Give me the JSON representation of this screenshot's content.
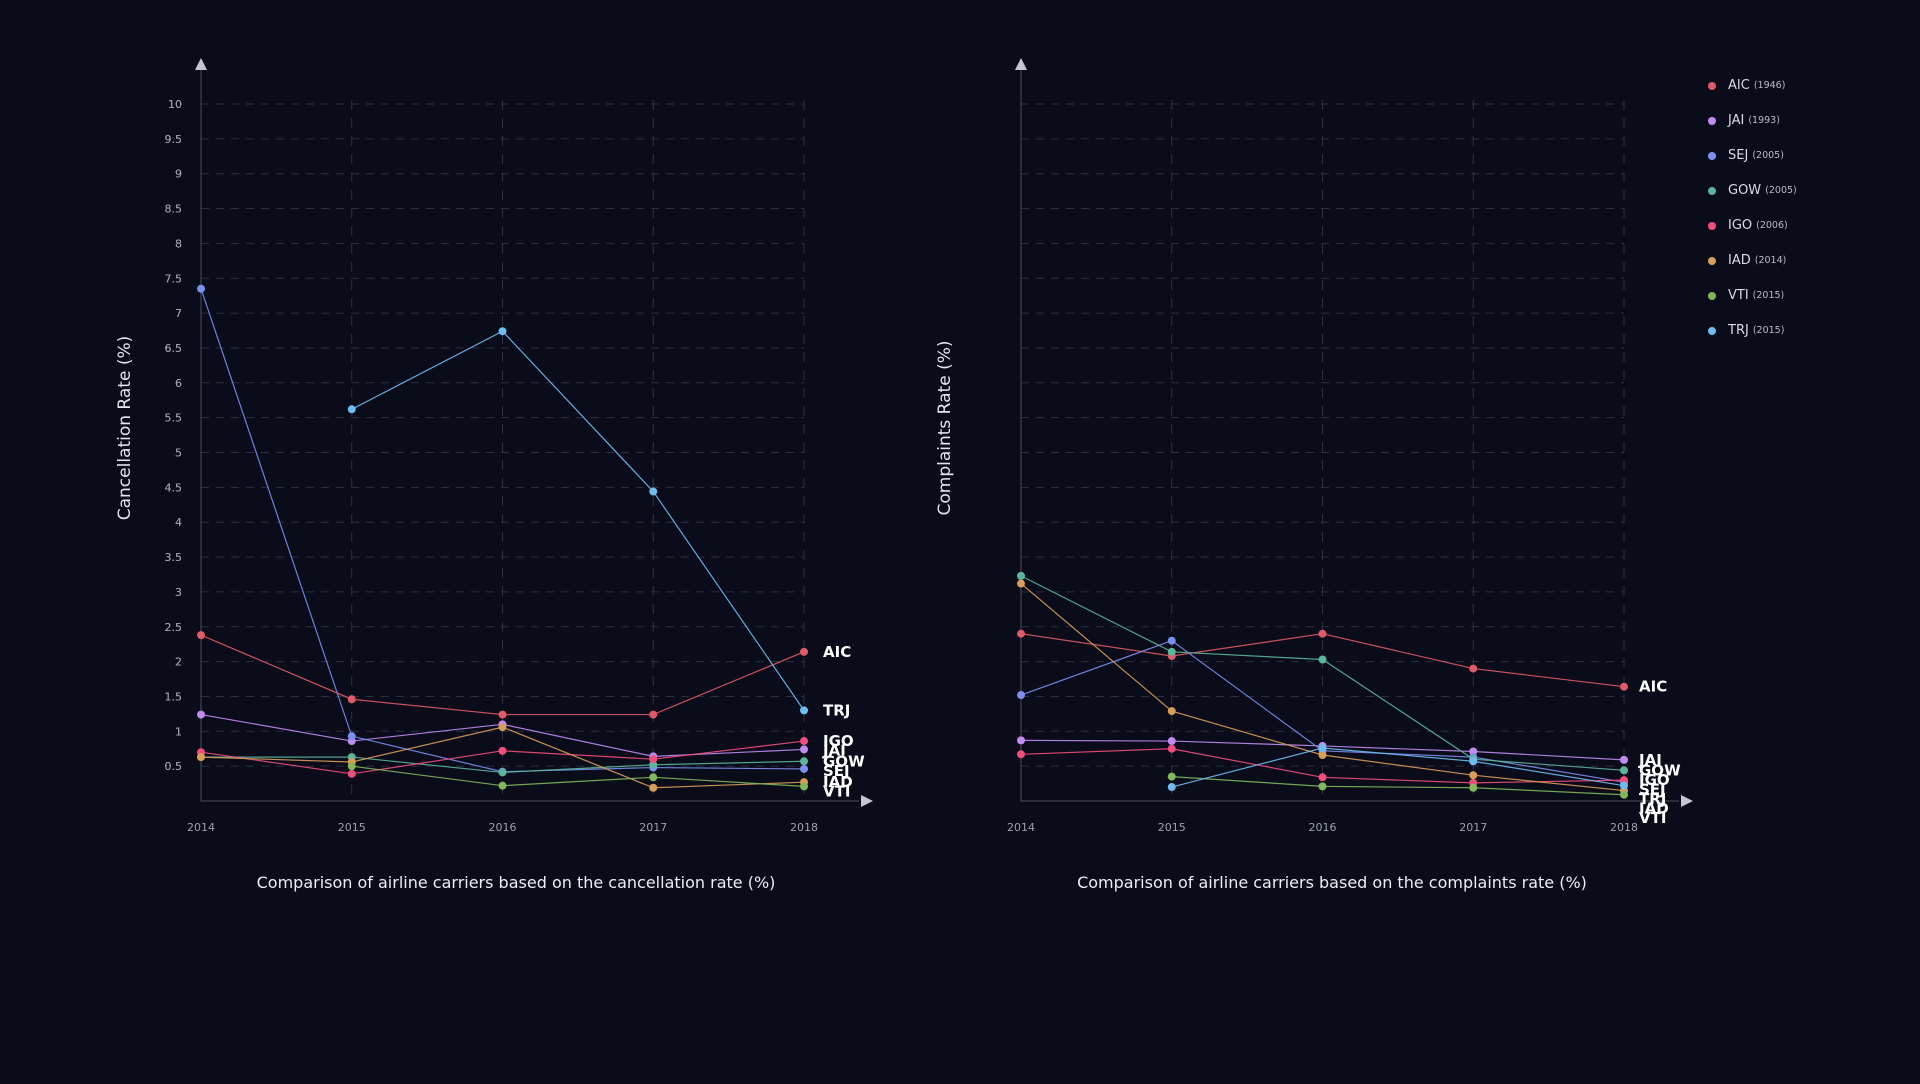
{
  "colors": {
    "AIC": "#e05a6a",
    "JAI": "#c08cf2",
    "SEJ": "#7b8ff0",
    "GOW": "#5bb59a",
    "IGO": "#ef4f7e",
    "IAD": "#d99d5a",
    "VTI": "#82b75c",
    "TRJ": "#6fbcf1"
  },
  "legend": [
    {
      "code": "AIC",
      "year": "(1946)"
    },
    {
      "code": "JAI",
      "year": "(1993)"
    },
    {
      "code": "SEJ",
      "year": "(2005)"
    },
    {
      "code": "GOW",
      "year": "(2005)"
    },
    {
      "code": "IGO",
      "year": "(2006)"
    },
    {
      "code": "IAD",
      "year": "(2014)"
    },
    {
      "code": "VTI",
      "year": "(2015)"
    },
    {
      "code": "TRJ",
      "year": "(2015)"
    }
  ],
  "chart_data": [
    {
      "type": "line",
      "title": "Comparison of airline carriers based on the cancellation rate (%)",
      "ylabel": "Cancellation Rate (%)",
      "xlabel": "",
      "x": [
        "2014",
        "2015",
        "2016",
        "2017",
        "2018"
      ],
      "y_ticks": [
        "0.5",
        "1",
        "1.5",
        "2",
        "2.5",
        "3",
        "3.5",
        "4",
        "4.5",
        "5",
        "5.5",
        "6",
        "6.5",
        "7",
        "7.5",
        "8",
        "8.5",
        "9",
        "9.5",
        "10"
      ],
      "ylim": [
        0,
        10
      ],
      "grid": true,
      "series": [
        {
          "name": "AIC",
          "values": [
            2.38,
            1.46,
            1.24,
            1.24,
            2.14
          ]
        },
        {
          "name": "JAI",
          "values": [
            1.24,
            0.86,
            1.1,
            0.64,
            0.74
          ]
        },
        {
          "name": "SEJ",
          "values": [
            7.35,
            0.93,
            0.42,
            0.48,
            0.46
          ]
        },
        {
          "name": "GOW",
          "values": [
            0.63,
            0.63,
            0.41,
            0.52,
            0.57
          ]
        },
        {
          "name": "IGO",
          "values": [
            0.7,
            0.39,
            0.72,
            0.6,
            0.86
          ]
        },
        {
          "name": "IAD",
          "values": [
            0.63,
            0.56,
            1.06,
            0.19,
            0.27
          ]
        },
        {
          "name": "VTI",
          "values": [
            null,
            0.5,
            0.22,
            0.34,
            0.21
          ]
        },
        {
          "name": "TRJ",
          "values": [
            null,
            5.62,
            6.74,
            4.44,
            1.3
          ]
        }
      ],
      "end_labels": [
        {
          "name": "AIC",
          "text": "AIC"
        },
        {
          "name": "TRJ",
          "text": "TRJ"
        },
        {
          "name": "IGO",
          "text": "IGO"
        },
        {
          "name": "JAI",
          "text": "JAI"
        },
        {
          "name": "GOW",
          "text": "GOW"
        },
        {
          "name": "SEJ",
          "text": "SEJ"
        },
        {
          "name": "IAD",
          "text": "IAD"
        },
        {
          "name": "VTI",
          "text": "VTI"
        }
      ]
    },
    {
      "type": "line",
      "title": "Comparison of airline carriers based on the complaints rate (%)",
      "ylabel": "Complaints Rate (%)",
      "xlabel": "",
      "x": [
        "2014",
        "2015",
        "2016",
        "2017",
        "2018"
      ],
      "y_ticks": [
        "0.5",
        "1",
        "1.5",
        "2",
        "2.5",
        "3",
        "3.5",
        "4",
        "4.5",
        "5",
        "5.5",
        "6",
        "6.5",
        "7",
        "7.5",
        "8",
        "8.5",
        "9",
        "9.5",
        "10"
      ],
      "ylim": [
        0,
        10
      ],
      "grid": true,
      "series": [
        {
          "name": "AIC",
          "values": [
            2.4,
            2.08,
            2.4,
            1.9,
            1.64
          ]
        },
        {
          "name": "JAI",
          "values": [
            0.87,
            0.86,
            0.79,
            0.71,
            0.59
          ]
        },
        {
          "name": "SEJ",
          "values": [
            1.52,
            2.3,
            0.72,
            0.63,
            0.27
          ]
        },
        {
          "name": "GOW",
          "values": [
            3.23,
            2.14,
            2.03,
            0.6,
            0.44
          ]
        },
        {
          "name": "IGO",
          "values": [
            0.67,
            0.75,
            0.34,
            0.26,
            0.3
          ]
        },
        {
          "name": "IAD",
          "values": [
            3.12,
            1.29,
            0.66,
            0.37,
            0.15
          ]
        },
        {
          "name": "VTI",
          "values": [
            null,
            0.35,
            0.21,
            0.19,
            0.09
          ]
        },
        {
          "name": "TRJ",
          "values": [
            null,
            0.2,
            0.76,
            0.57,
            0.22
          ]
        }
      ],
      "end_labels": [
        {
          "name": "AIC",
          "text": "AIC"
        },
        {
          "name": "JAI",
          "text": "JAI"
        },
        {
          "name": "GOW",
          "text": "GOW"
        },
        {
          "name": "IGO",
          "text": "IGO"
        },
        {
          "name": "TRJ",
          "text": "TRJ"
        },
        {
          "name": "SEJ",
          "text": "SEJ"
        },
        {
          "name": "IAD",
          "text": "IAD"
        },
        {
          "name": "VTI",
          "text": "VTI"
        }
      ]
    }
  ]
}
